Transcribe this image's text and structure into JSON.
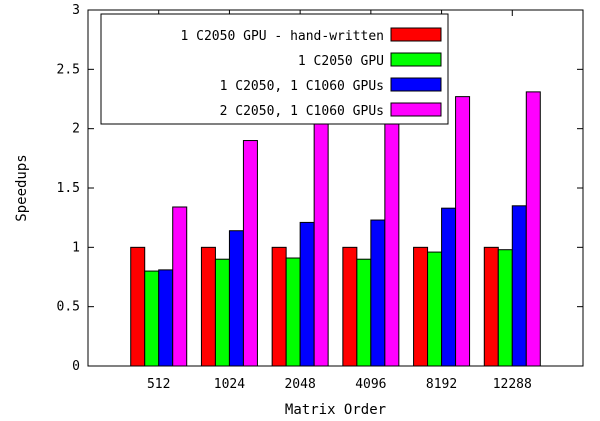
{
  "chart_data": {
    "type": "bar",
    "title": "",
    "xlabel": "Matrix Order",
    "ylabel": "Speedups",
    "categories": [
      "512",
      "1024",
      "2048",
      "4096",
      "8192",
      "12288"
    ],
    "ylim": [
      0,
      3
    ],
    "yticks": [
      "0",
      "0.5",
      "1",
      "1.5",
      "2",
      "2.5",
      "3"
    ],
    "grid": false,
    "legend_position": "top-left",
    "series": [
      {
        "name": "1 C2050 GPU - hand-written",
        "color": "#ff0000",
        "values": [
          1.0,
          1.0,
          1.0,
          1.0,
          1.0,
          1.0
        ]
      },
      {
        "name": "1 C2050 GPU",
        "color": "#00ff00",
        "values": [
          0.8,
          0.9,
          0.91,
          0.9,
          0.96,
          0.98
        ]
      },
      {
        "name": "1 C2050, 1 C1060 GPUs",
        "color": "#0000ff",
        "values": [
          0.81,
          1.14,
          1.21,
          1.23,
          1.33,
          1.35
        ]
      },
      {
        "name": "2 C2050, 1 C1060 GPUs",
        "color": "#ff00ff",
        "values": [
          1.34,
          1.9,
          2.09,
          2.1,
          2.27,
          2.31
        ]
      }
    ]
  }
}
